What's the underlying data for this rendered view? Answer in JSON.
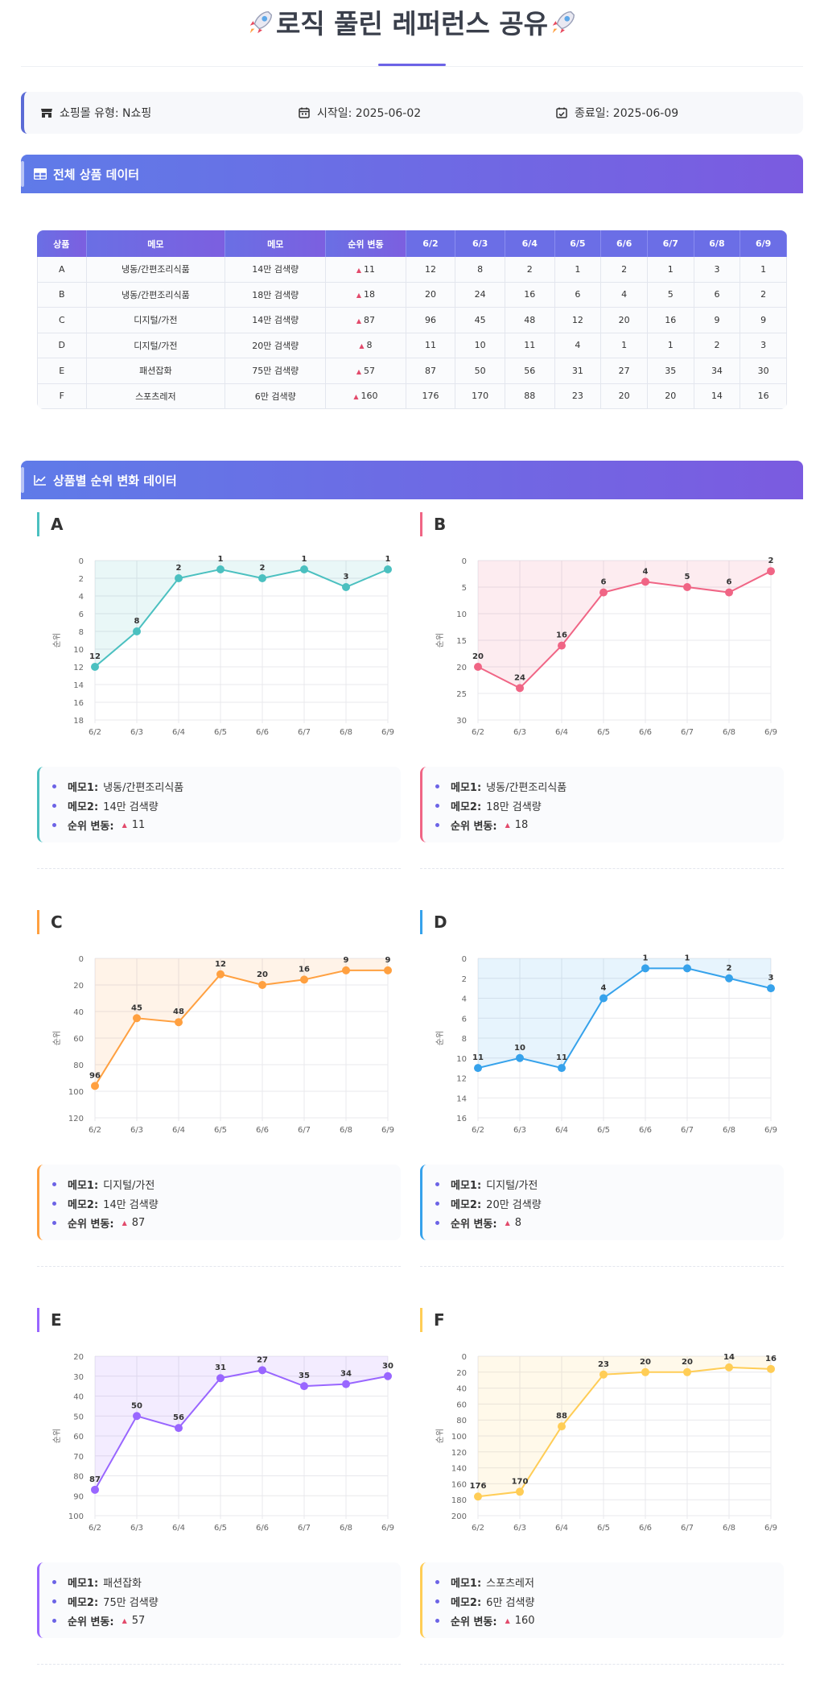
{
  "page": {
    "title": "로직 풀린 레퍼런스 공유"
  },
  "info": {
    "mall": "쇼핑몰 유형: N쇼핑",
    "start": "시작일: 2025-06-02",
    "end": "종료일: 2025-06-09"
  },
  "sections": {
    "all_data": "전체 상품 데이터",
    "rank_changes": "상품별 순위 변화 데이터"
  },
  "table": {
    "headers": [
      "상품",
      "메모",
      "메모",
      "순위 변동",
      "6/2",
      "6/3",
      "6/4",
      "6/5",
      "6/6",
      "6/7",
      "6/8",
      "6/9"
    ],
    "rows": [
      [
        "A",
        "냉동/간편조리식품",
        "14만 검색량",
        "11",
        "12",
        "8",
        "2",
        "1",
        "2",
        "1",
        "3",
        "1"
      ],
      [
        "B",
        "냉동/간편조리식품",
        "18만 검색량",
        "18",
        "20",
        "24",
        "16",
        "6",
        "4",
        "5",
        "6",
        "2"
      ],
      [
        "C",
        "디지털/가전",
        "14만 검색량",
        "87",
        "96",
        "45",
        "48",
        "12",
        "20",
        "16",
        "9",
        "9"
      ],
      [
        "D",
        "디지털/가전",
        "20만 검색량",
        "8",
        "11",
        "10",
        "11",
        "4",
        "1",
        "1",
        "2",
        "3"
      ],
      [
        "E",
        "패션잡화",
        "75만 검색량",
        "57",
        "87",
        "50",
        "56",
        "31",
        "27",
        "35",
        "34",
        "30"
      ],
      [
        "F",
        "스포츠레저",
        "6만 검색량",
        "160",
        "176",
        "170",
        "88",
        "23",
        "20",
        "20",
        "14",
        "16"
      ]
    ]
  },
  "memo_labels": {
    "memo1": "메모1:",
    "memo2": "메모2:",
    "rank_change": "순위 변동:"
  },
  "chart_data": [
    {
      "type": "line",
      "title": "A",
      "color": "#4bc0c0",
      "ylabel": "순위",
      "ylim": [
        0,
        18
      ],
      "y_inverted": true,
      "grid": true,
      "x": [
        "6/2",
        "6/3",
        "6/4",
        "6/5",
        "6/6",
        "6/7",
        "6/8",
        "6/9"
      ],
      "yticks": [
        0,
        2,
        4,
        6,
        8,
        10,
        12,
        14,
        16,
        18
      ],
      "values": [
        12,
        8,
        2,
        1,
        2,
        1,
        3,
        1
      ],
      "memo1": "냉동/간편조리식품",
      "memo2": "14만 검색량",
      "change": "11"
    },
    {
      "type": "line",
      "title": "B",
      "color": "#f06585",
      "ylabel": "순위",
      "ylim": [
        0,
        30
      ],
      "y_inverted": true,
      "grid": true,
      "x": [
        "6/2",
        "6/3",
        "6/4",
        "6/5",
        "6/6",
        "6/7",
        "6/8",
        "6/9"
      ],
      "yticks": [
        0,
        5,
        10,
        15,
        20,
        25,
        30
      ],
      "values": [
        20,
        24,
        16,
        6,
        4,
        5,
        6,
        2
      ],
      "memo1": "냉동/간편조리식품",
      "memo2": "18만 검색량",
      "change": "18"
    },
    {
      "type": "line",
      "title": "C",
      "color": "#ffa040",
      "ylabel": "순위",
      "ylim": [
        0,
        120
      ],
      "y_inverted": true,
      "grid": true,
      "x": [
        "6/2",
        "6/3",
        "6/4",
        "6/5",
        "6/6",
        "6/7",
        "6/8",
        "6/9"
      ],
      "yticks": [
        0,
        20,
        40,
        60,
        80,
        100,
        120
      ],
      "values": [
        96,
        45,
        48,
        12,
        20,
        16,
        9,
        9
      ],
      "memo1": "디지털/가전",
      "memo2": "14만 검색량",
      "change": "87"
    },
    {
      "type": "line",
      "title": "D",
      "color": "#36a2eb",
      "ylabel": "순위",
      "ylim": [
        0,
        16
      ],
      "y_inverted": true,
      "grid": true,
      "x": [
        "6/2",
        "6/3",
        "6/4",
        "6/5",
        "6/6",
        "6/7",
        "6/8",
        "6/9"
      ],
      "yticks": [
        0,
        2,
        4,
        6,
        8,
        10,
        12,
        14,
        16
      ],
      "values": [
        11,
        10,
        11,
        4,
        1,
        1,
        2,
        3
      ],
      "memo1": "디지털/가전",
      "memo2": "20만 검색량",
      "change": "8"
    },
    {
      "type": "line",
      "title": "E",
      "color": "#9966ff",
      "ylabel": "순위",
      "ylim": [
        20,
        100
      ],
      "y_inverted": true,
      "grid": true,
      "x": [
        "6/2",
        "6/3",
        "6/4",
        "6/5",
        "6/6",
        "6/7",
        "6/8",
        "6/9"
      ],
      "yticks": [
        20,
        30,
        40,
        50,
        60,
        70,
        80,
        90,
        100
      ],
      "values": [
        87,
        50,
        56,
        31,
        27,
        35,
        34,
        30
      ],
      "memo1": "패션잡화",
      "memo2": "75만 검색량",
      "change": "57"
    },
    {
      "type": "line",
      "title": "F",
      "color": "#ffcd56",
      "ylabel": "순위",
      "ylim": [
        0,
        200
      ],
      "y_inverted": true,
      "grid": true,
      "x": [
        "6/2",
        "6/3",
        "6/4",
        "6/5",
        "6/6",
        "6/7",
        "6/8",
        "6/9"
      ],
      "yticks": [
        0,
        20,
        40,
        60,
        80,
        100,
        120,
        140,
        160,
        180,
        200
      ],
      "values": [
        176,
        170,
        88,
        23,
        20,
        20,
        14,
        16
      ],
      "memo1": "스포츠레저",
      "memo2": "6만 검색량",
      "change": "160"
    }
  ]
}
